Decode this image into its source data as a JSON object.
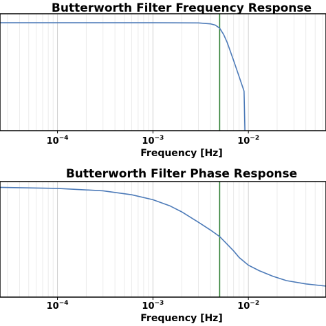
{
  "chart_data": [
    {
      "type": "line",
      "title": "Butterworth Filter Frequency Response",
      "xlabel": "Frequency [Hz]",
      "ylabel": "",
      "xscale": "log",
      "xlim": [
        2.5e-05,
        0.065
      ],
      "ylim": [
        -60,
        5
      ],
      "grid": "vertical",
      "xticks": [
        {
          "value": 0.0001,
          "base": "10",
          "exp": "−4"
        },
        {
          "value": 0.001,
          "base": "10",
          "exp": "−3"
        },
        {
          "value": 0.01,
          "base": "10",
          "exp": "−2"
        }
      ],
      "cutoff": {
        "x": 0.005,
        "color": "#2e7d32"
      },
      "series": [
        {
          "color": "#4c7ab8",
          "points": [
            [
              2.5e-05,
              0
            ],
            [
              0.0001,
              0
            ],
            [
              0.001,
              0
            ],
            [
              0.003,
              -0.1
            ],
            [
              0.004,
              -0.6
            ],
            [
              0.0045,
              -1.3
            ],
            [
              0.005,
              -3
            ],
            [
              0.0055,
              -6.5
            ],
            [
              0.006,
              -11
            ],
            [
              0.007,
              -21
            ],
            [
              0.008,
              -30
            ],
            [
              0.009,
              -38
            ],
            [
              0.0092,
              -60
            ]
          ]
        }
      ]
    },
    {
      "type": "line",
      "title": "Butterworth Filter Phase Response",
      "xlabel": "Frequency [Hz]",
      "ylabel": "",
      "xscale": "log",
      "xlim": [
        2.5e-05,
        0.065
      ],
      "ylim": [
        -100,
        5
      ],
      "grid": "vertical",
      "xticks": [
        {
          "value": 0.0001,
          "base": "10",
          "exp": "−4"
        },
        {
          "value": 0.001,
          "base": "10",
          "exp": "−3"
        },
        {
          "value": 0.01,
          "base": "10",
          "exp": "−2"
        }
      ],
      "cutoff": {
        "x": 0.005,
        "color": "#2e7d32"
      },
      "series": [
        {
          "color": "#4c7ab8",
          "points": [
            [
              2.5e-05,
              -0.3
            ],
            [
              0.0001,
              -1.2
            ],
            [
              0.0003,
              -3.4
            ],
            [
              0.0006,
              -7
            ],
            [
              0.001,
              -11.5
            ],
            [
              0.0015,
              -17
            ],
            [
              0.002,
              -22.5
            ],
            [
              0.003,
              -32
            ],
            [
              0.004,
              -39
            ],
            [
              0.005,
              -45
            ],
            [
              0.006,
              -52
            ],
            [
              0.007,
              -58
            ],
            [
              0.008,
              -64
            ],
            [
              0.01,
              -71
            ],
            [
              0.013,
              -76
            ],
            [
              0.018,
              -81
            ],
            [
              0.025,
              -85
            ],
            [
              0.04,
              -88
            ],
            [
              0.065,
              -90
            ]
          ]
        }
      ]
    }
  ]
}
